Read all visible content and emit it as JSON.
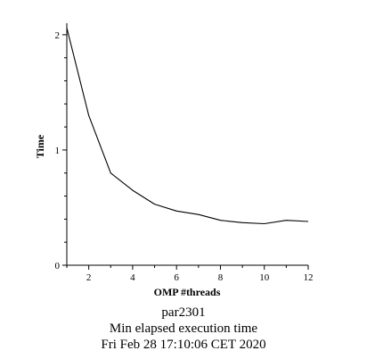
{
  "chart_data": {
    "type": "line",
    "xlabel": "OMP #threads",
    "ylabel": "Time",
    "xlim": [
      1,
      12
    ],
    "ylim": [
      0,
      2.1
    ],
    "xticks": [
      2,
      4,
      6,
      8,
      10,
      12
    ],
    "yticks": [
      0,
      1,
      2
    ],
    "grid": false,
    "series": [
      {
        "x": [
          1,
          2,
          3,
          4,
          5,
          6,
          7,
          8,
          9,
          10,
          11,
          12
        ],
        "y": [
          2.06,
          1.3,
          0.8,
          0.65,
          0.53,
          0.47,
          0.44,
          0.39,
          0.37,
          0.36,
          0.39,
          0.38
        ],
        "color": "#000000"
      }
    ]
  },
  "caption": {
    "line1": "par2301",
    "line2": "Min elapsed execution time",
    "line3": "Fri Feb 28 17:10:06 CET 2020"
  }
}
